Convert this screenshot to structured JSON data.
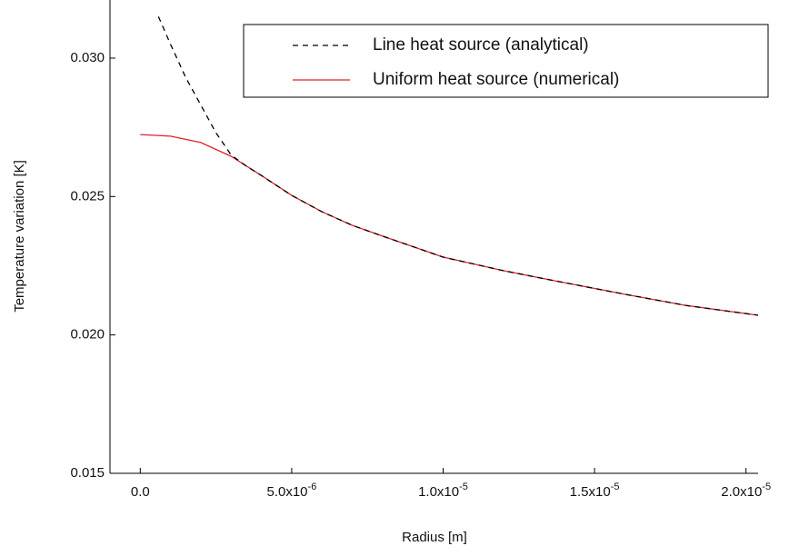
{
  "chart_data": {
    "type": "line",
    "x_label": "Radius [m]",
    "y_label": "Temperature variation [K]",
    "xlim": [
      -1e-06,
      2.04e-05
    ],
    "ylim": [
      0.015,
      0.0321
    ],
    "xticks": [
      {
        "value": 0,
        "label": "0.0"
      },
      {
        "value": 5e-06,
        "label": "5.0x10",
        "exp": "-6"
      },
      {
        "value": 1e-05,
        "label": "1.0x10",
        "exp": "-5"
      },
      {
        "value": 1.5e-05,
        "label": "1.5x10",
        "exp": "-5"
      },
      {
        "value": 2e-05,
        "label": "2.0x10",
        "exp": "-5"
      }
    ],
    "yticks": [
      {
        "value": 0.015,
        "label": "0.015"
      },
      {
        "value": 0.02,
        "label": "0.020"
      },
      {
        "value": 0.025,
        "label": "0.025"
      },
      {
        "value": 0.03,
        "label": "0.030"
      }
    ],
    "legend": "upper right",
    "series": [
      {
        "name": "Line heat source (analytical)",
        "color": "#000000",
        "dash": true,
        "x": [
          6e-07,
          1e-06,
          1.5e-06,
          2e-06,
          2.5e-06,
          3e-06,
          3.5e-06,
          4e-06,
          5e-06,
          6e-06,
          7e-06,
          8e-06,
          1e-05,
          1.2e-05,
          1.4e-05,
          1.6e-05,
          1.8e-05,
          2.04e-05
        ],
        "values": [
          0.0315,
          0.0305,
          0.0293,
          0.0283,
          0.0273,
          0.0265,
          0.0261,
          0.02576,
          0.02504,
          0.02445,
          0.02396,
          0.02357,
          0.02281,
          0.02232,
          0.02189,
          0.02147,
          0.02107,
          0.02071
        ]
      },
      {
        "name": "Uniform heat source (numerical)",
        "color": "#e0202a",
        "dash": false,
        "x": [
          0,
          1e-06,
          2e-06,
          3e-06,
          4e-06,
          5e-06,
          6e-06,
          7e-06,
          8e-06,
          1e-05,
          1.2e-05,
          1.4e-05,
          1.6e-05,
          1.8e-05,
          2.04e-05
        ],
        "values": [
          0.02724,
          0.02718,
          0.02695,
          0.02645,
          0.02576,
          0.02504,
          0.02445,
          0.02396,
          0.02357,
          0.02281,
          0.02232,
          0.02189,
          0.02147,
          0.02107,
          0.02071
        ]
      }
    ]
  }
}
